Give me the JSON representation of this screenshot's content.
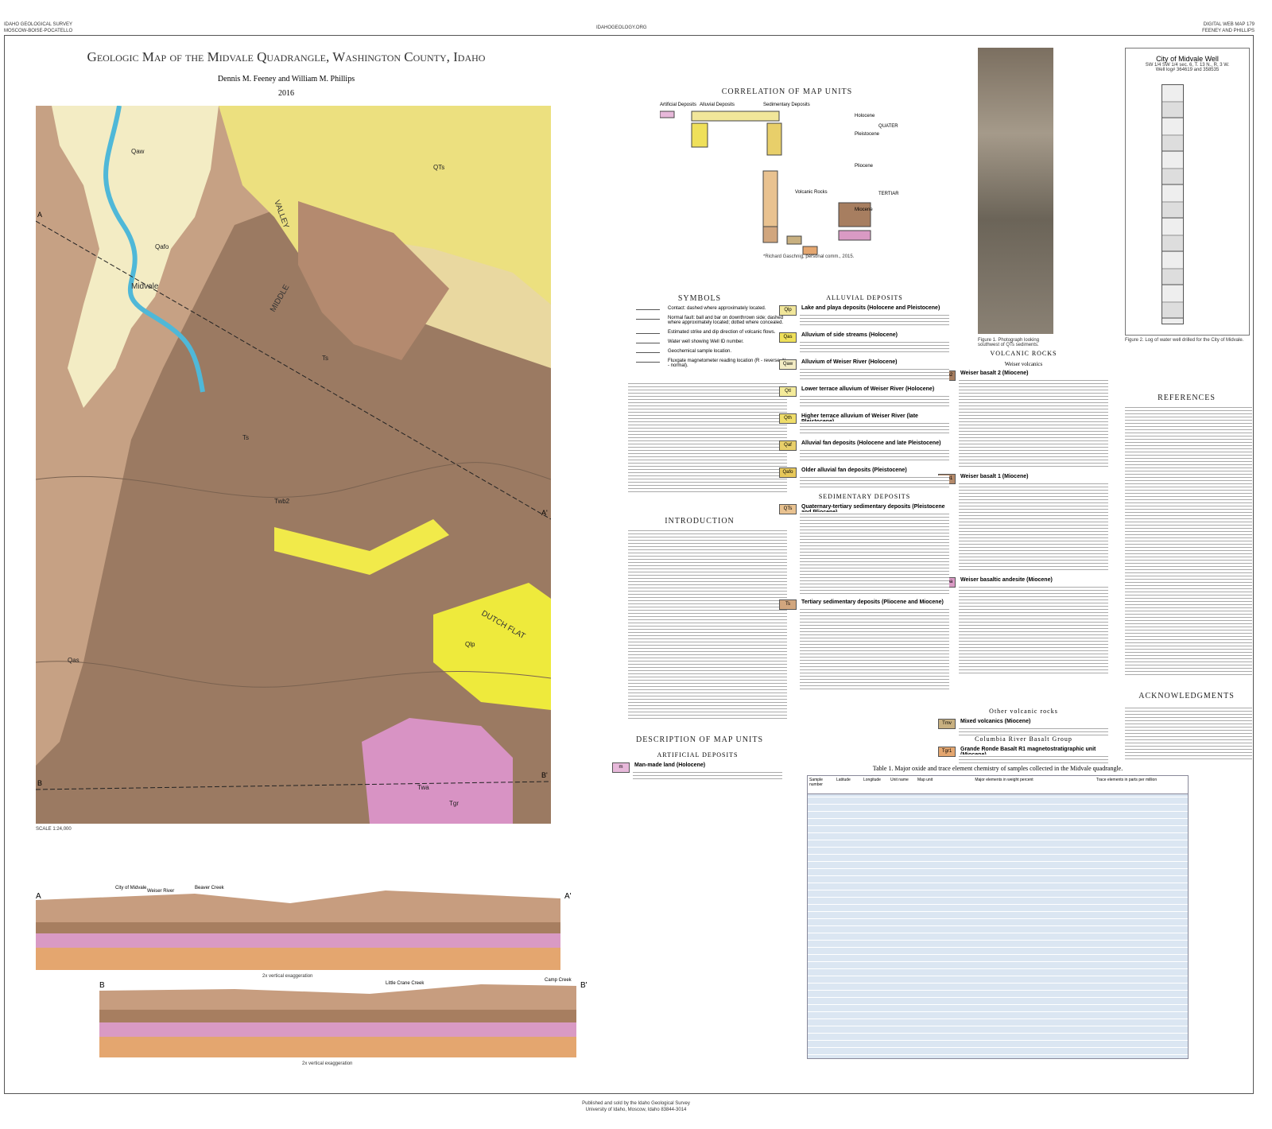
{
  "header": {
    "survey": "IDAHO GEOLOGICAL SURVEY",
    "offices": "MOSCOW-BOISE-POCATELLO",
    "website": "IDAHOGEOLOGY.ORG",
    "series": "DIGITAL WEB MAP 179",
    "authors_short": "FEENEY AND PHILLIPS"
  },
  "title": "Geologic Map of the Midvale Quadrangle, Washington County, Idaho",
  "authors": "Dennis M. Feeney and William M. Phillips",
  "year": "2016",
  "map": {
    "place_labels": [
      "MIDDLE",
      "VALLEY",
      "DUTCH FLAT",
      "Midvale"
    ],
    "unit_labels": [
      "Qaw",
      "Qas",
      "Qlp",
      "QTs",
      "Ts",
      "Twb2",
      "Twa",
      "Tgr",
      "Qafo",
      "Ts"
    ],
    "section_ends": [
      "A",
      "A'",
      "B",
      "B'"
    ]
  },
  "sections": {
    "correlation": "CORRELATION OF MAP UNITS",
    "symbols": "SYMBOLS",
    "introduction": "INTRODUCTION",
    "description": "DESCRIPTION OF MAP UNITS",
    "references": "REFERENCES",
    "acknowledgments": "ACKNOWLEDGMENTS"
  },
  "correlation": {
    "groups": [
      "Artificial Deposits",
      "Alluvial Deposits",
      "Sedimentary Deposits",
      "Volcanic Rocks"
    ],
    "epochs": [
      "Holocene",
      "Pleistocene",
      "Pliocene",
      "Miocene"
    ],
    "periods": [
      "QUATERNARY",
      "TERTIARY"
    ],
    "note": "*Richard Gaschnig, personal comm., 2015."
  },
  "symbols": [
    "Contact: dashed where approximately located.",
    "Normal fault: ball and bar on downthrown side; dashed where approximately located; dotted where concealed.",
    "Estimated strike and dip direction of volcanic flows.",
    "Water well showing Well ID number.",
    "Geochemical sample location.",
    "Fluxgate magnetometer reading location (R - reverse, N - normal)."
  ],
  "units": {
    "artificial": {
      "heading": "ARTIFICIAL DEPOSITS",
      "items": [
        {
          "code": "m",
          "name": "Man-made land (Holocene)"
        }
      ]
    },
    "alluvial": {
      "heading": "ALLUVIAL DEPOSITS",
      "items": [
        {
          "code": "Qlp",
          "name": "Lake and playa deposits (Holocene and Pleistocene)"
        },
        {
          "code": "Qas",
          "name": "Alluvium of side streams (Holocene)"
        },
        {
          "code": "Qaw",
          "name": "Alluvium of Weiser River (Holocene)"
        },
        {
          "code": "Qtl",
          "name": "Lower terrace alluvium of Weiser River (Holocene)"
        },
        {
          "code": "Qth",
          "name": "Higher terrace alluvium of Weiser River (late Pleistocene)"
        },
        {
          "code": "Qaf",
          "name": "Alluvial fan deposits (Holocene and late Pleistocene)"
        },
        {
          "code": "Qafo",
          "name": "Older alluvial fan deposits (Pleistocene)"
        }
      ]
    },
    "sedimentary": {
      "heading": "SEDIMENTARY DEPOSITS",
      "items": [
        {
          "code": "QTs",
          "name": "Quaternary-tertiary sedimentary deposits (Pleistocene and Pliocene)"
        },
        {
          "code": "Ts",
          "name": "Tertiary sedimentary deposits (Pliocene and Miocene)"
        }
      ]
    },
    "volcanic": {
      "heading": "VOLCANIC ROCKS",
      "subheading": "Weiser volcanics",
      "items": [
        {
          "code": "Twb2",
          "name": "Weiser basalt 2 (Miocene)"
        },
        {
          "code": "Twb1",
          "name": "Weiser basalt 1 (Miocene)"
        },
        {
          "code": "Twba",
          "name": "Weiser basaltic andesite (Miocene)"
        }
      ]
    },
    "other": {
      "heading": "Other volcanic rocks",
      "items": [
        {
          "code": "Tmv",
          "name": "Mixed volcanics (Miocene)"
        }
      ]
    },
    "crbg": {
      "heading": "Columbia River Basalt Group",
      "items": [
        {
          "code": "Tgr1",
          "name": "Grande Ronde Basalt R1 magnetostratigraphic unit (Miocene)"
        }
      ]
    }
  },
  "well": {
    "title": "City of Midvale Well",
    "location": "SW 1/4 SW 1/4 sec. 6, T. 13 N., R. 3 W.",
    "log": "Well log# 364619 and 358535",
    "caption": "Figure 2. Log of water well drilled for the City of Midvale."
  },
  "photo": {
    "caption": "Figure 1. Photograph looking southwest of QTs sediments."
  },
  "scale": "SCALE 1:24,000",
  "cross_sections": {
    "exaggeration": "2x vertical exaggeration",
    "places": [
      "City of Midvale",
      "Weiser River",
      "Beaver Creek",
      "Little Crane Creek",
      "Camp Creek"
    ]
  },
  "table": {
    "caption": "Table 1. Major oxide and trace element chemistry of samples collected in the Midvale quadrangle.",
    "headers": [
      "Sample number",
      "Latitude",
      "Longitude",
      "Unit name",
      "Map unit"
    ],
    "groups": [
      "Major elements in weight percent",
      "Trace elements in parts per million"
    ]
  },
  "footer": {
    "publisher": "Published and sold by the Idaho Geological Survey",
    "address": "University of Idaho, Moscow, Idaho 83844-3014"
  }
}
